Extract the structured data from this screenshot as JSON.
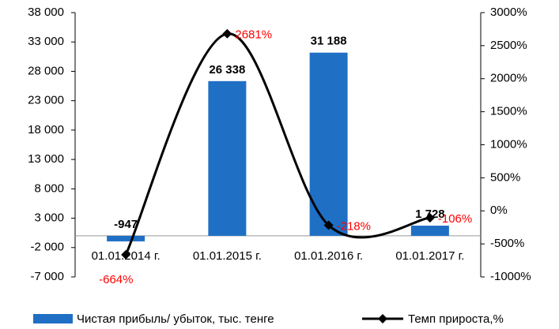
{
  "chart_data": {
    "type": "bar",
    "categories": [
      "01.01.2014 г.",
      "01.01.2015 г.",
      "01.01.2016 г.",
      "01.01.2017 г."
    ],
    "series": [
      {
        "name": "Чистая прибыль/ убыток, тыс. тенге",
        "type": "bar",
        "color": "#1f6fc5",
        "values": [
          -947,
          26338,
          31188,
          1728
        ],
        "value_labels": [
          "-947",
          "26 338",
          "31 188",
          "1 728"
        ]
      },
      {
        "name": "Темп прироста,%",
        "type": "line",
        "axis": "y2",
        "color": "#000000",
        "label_color": "#ff0000",
        "values": [
          -664,
          2681,
          -218,
          -106
        ],
        "value_labels": [
          "-664%",
          "2681%",
          "-218%",
          "-106%"
        ]
      }
    ],
    "ylim": [
      -7000,
      38000
    ],
    "yticks": [
      {
        "value": -7000,
        "label": "-7 000"
      },
      {
        "value": -2000,
        "label": "-2 000"
      },
      {
        "value": 3000,
        "label": "3 000"
      },
      {
        "value": 8000,
        "label": "8 000"
      },
      {
        "value": 13000,
        "label": "13 000"
      },
      {
        "value": 18000,
        "label": "18 000"
      },
      {
        "value": 23000,
        "label": "23 000"
      },
      {
        "value": 28000,
        "label": "28 000"
      },
      {
        "value": 33000,
        "label": "33 000"
      },
      {
        "value": 38000,
        "label": "38 000"
      }
    ],
    "y2lim": [
      -1000,
      3000
    ],
    "y2ticks": [
      {
        "value": -1000,
        "label": "-1000%"
      },
      {
        "value": -500,
        "label": "-500%"
      },
      {
        "value": 0,
        "label": "0%"
      },
      {
        "value": 500,
        "label": "500%"
      },
      {
        "value": 1000,
        "label": "1000%"
      },
      {
        "value": 1500,
        "label": "1500%"
      },
      {
        "value": 2000,
        "label": "2000%"
      },
      {
        "value": 2500,
        "label": "2500%"
      },
      {
        "value": 3000,
        "label": "3000%"
      }
    ],
    "grid": false,
    "legend": "bottom"
  }
}
